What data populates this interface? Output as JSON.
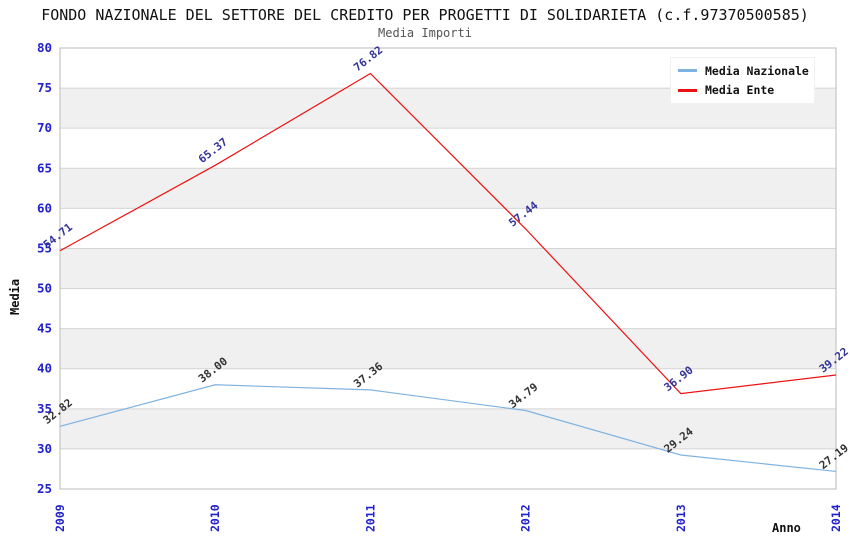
{
  "header": {
    "title": "FONDO NAZIONALE DEL SETTORE DEL CREDITO PER PROGETTI DI SOLIDARIETA (c.f.97370500585)",
    "subtitle": "Media Importi"
  },
  "legend": {
    "items": [
      {
        "label": "Media Nazionale",
        "color": "#7fb2e0"
      },
      {
        "label": "Media Ente",
        "color": "#ee1111"
      }
    ]
  },
  "chart_data": {
    "type": "line",
    "title": "FONDO NAZIONALE DEL SETTORE DEL CREDITO PER PROGETTI DI SOLIDARIETA (c.f.97370500585)",
    "subtitle": "Media Importi",
    "x_categories": [
      "2009",
      "2010",
      "2011",
      "2012",
      "2013",
      "2014"
    ],
    "series": [
      {
        "name": "Media Nazionale",
        "color": "#7fb2e0",
        "label_color": "#333333",
        "values": [
          32.82,
          38.0,
          37.36,
          34.79,
          29.24,
          27.19
        ]
      },
      {
        "name": "Media Ente",
        "color": "#ee1111",
        "label_color": "#333399",
        "values": [
          54.71,
          65.37,
          76.82,
          57.44,
          36.9,
          39.22
        ]
      }
    ],
    "xlabel": "Anno",
    "ylabel": "Media",
    "ylim": [
      25,
      80
    ],
    "ytick_step": 5,
    "grid": true,
    "band_colors": [
      "#ffffff",
      "#f0f0f0"
    ],
    "grid_color": "#d4d4d4",
    "frame_color": "#bbbbbb",
    "axis_tick_color": "#2222cc",
    "legend_position": "top-right"
  }
}
